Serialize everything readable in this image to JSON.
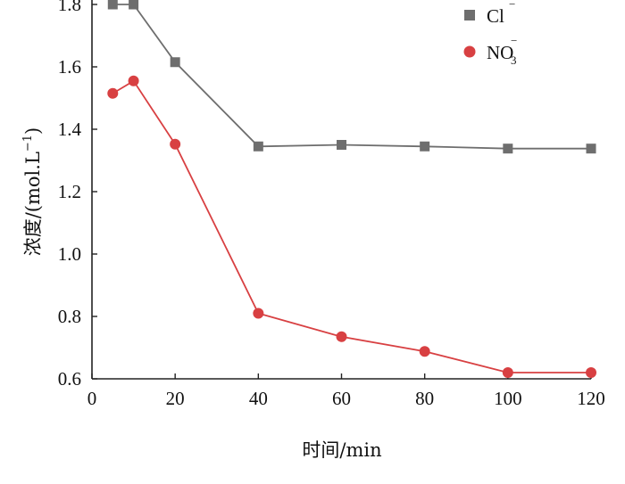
{
  "chart_data": {
    "type": "line",
    "xlabel": "时间/min",
    "ylabel": "浓度/(mol.L",
    "ylabel_sup": "−1",
    "ylabel_close": ")",
    "xlim": [
      0,
      120
    ],
    "ylim": [
      0.6,
      1.8
    ],
    "x_ticks": [
      0,
      20,
      40,
      60,
      80,
      100,
      120
    ],
    "x_tick_labels": [
      "0",
      "20",
      "40",
      "60",
      "80",
      "100",
      "120"
    ],
    "y_ticks": [
      0.6,
      0.8,
      1.0,
      1.2,
      1.4,
      1.6,
      1.8
    ],
    "y_tick_labels": [
      "0.6",
      "0.8",
      "1.0",
      "1.2",
      "1.4",
      "1.6",
      "1.8"
    ],
    "grid": false,
    "legend_position": "top-right",
    "series": [
      {
        "name": "Cl",
        "name_sup": "−",
        "name_sub": "",
        "marker": "square",
        "color": "#6e6e6e",
        "x": [
          5,
          10,
          20,
          40,
          60,
          80,
          100,
          120
        ],
        "y": [
          1.8,
          1.8,
          1.615,
          1.345,
          1.35,
          1.345,
          1.338,
          1.338
        ]
      },
      {
        "name": "NO",
        "name_sup": "−",
        "name_sub": "3",
        "marker": "circle",
        "color": "#d84042",
        "x": [
          5,
          10,
          20,
          40,
          60,
          80,
          100,
          120
        ],
        "y": [
          1.515,
          1.555,
          1.352,
          0.81,
          0.735,
          0.688,
          0.62,
          0.62
        ]
      }
    ]
  }
}
